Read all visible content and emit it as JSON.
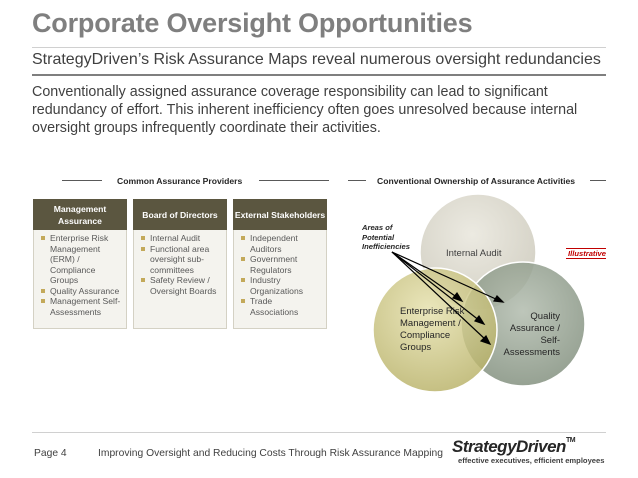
{
  "title": "Corporate Oversight Opportunities",
  "subtitle": "StrategyDriven’s Risk Assurance Maps reveal numerous oversight redundancies",
  "body": "Conventionally assigned assurance coverage responsibility can lead to significant redundancy of effort.  This inherent inefficiency often goes unresolved because internal oversight groups infrequently coordinate their activities.",
  "left_section": {
    "label": "Common Assurance Providers",
    "columns": [
      {
        "header": "Management Assurance",
        "items": [
          "Enterprise Risk Management (ERM) / Compliance Groups",
          "Quality Assurance",
          "Management Self-Assessments"
        ]
      },
      {
        "header": "Board of Directors",
        "items": [
          "Internal Audit",
          "Functional area oversight sub-committees",
          "Safety Review / Oversight Boards"
        ]
      },
      {
        "header": "External Stakeholders",
        "items": [
          "Independent Auditors",
          "Government Regulators",
          "Industry Organizations",
          "Trade Associations"
        ]
      }
    ]
  },
  "right_section": {
    "label": "Conventional Ownership of Assurance Activities",
    "annotation": "Areas of Potential Inefficiencies",
    "illustrative": "Illustrative",
    "circles": [
      {
        "label": "Internal Audit",
        "color": "#d4d1c4"
      },
      {
        "label": "Enterprise Risk Management / Compliance Groups",
        "color": "#c8c27a"
      },
      {
        "label": "Quality Assurance / Self-Assessments",
        "color": "#8c9a86"
      }
    ]
  },
  "footer": {
    "page": "Page 4",
    "text": "Improving Oversight and Reducing Costs Through Risk Assurance Mapping",
    "logo": "StrategyDriven",
    "logo_tm": "TM",
    "tagline": "effective executives, efficient employees"
  }
}
